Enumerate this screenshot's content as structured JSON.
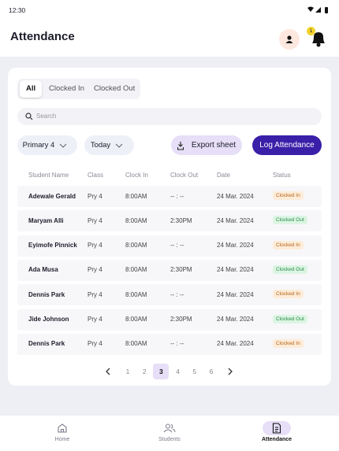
{
  "status_bar": {
    "time": "12:30"
  },
  "header": {
    "title": "Attendance",
    "notification_count": "1"
  },
  "tabs": [
    "All",
    "Clocked In",
    "Clocked Out"
  ],
  "search": {
    "placeholder": "Search"
  },
  "filters": {
    "class": "Primary 4",
    "date": "Today"
  },
  "actions": {
    "export": "Export sheet",
    "log": "Log Attendance"
  },
  "table": {
    "columns": [
      "Student Name",
      "Class",
      "Clock In",
      "Clock Out",
      "Date",
      "Status"
    ],
    "rows": [
      [
        "Adewale Gerald",
        "Pry 4",
        "8:00AM",
        "-- : --",
        "24 Mar. 2024",
        "Clocked In"
      ],
      [
        "Maryam Alli",
        "Pry 4",
        "8:00AM",
        "2:30PM",
        "24 Mar. 2024",
        "Clocked Out"
      ],
      [
        "Eyimofe Pinnick",
        "Pry 4",
        "8:00AM",
        "-- : --",
        "24 Mar. 2024",
        "Clocked In"
      ],
      [
        "Ada Musa",
        "Pry 4",
        "8:00AM",
        "2:30PM",
        "24 Mar. 2024",
        "Clocked Out"
      ],
      [
        "Dennis Park",
        "Pry 4",
        "8:00AM",
        "-- : --",
        "24 Mar. 2024",
        "Clocked In"
      ],
      [
        "Jide Johnson",
        "Pry 4",
        "8:00AM",
        "2:30PM",
        "24 Mar. 2024",
        "Clocked Out"
      ],
      [
        "Dennis Park",
        "Pry 4",
        "8:00AM",
        "-- : --",
        "24 Mar. 2024",
        "Clocked In"
      ]
    ]
  },
  "pagination": {
    "pages": [
      1,
      2,
      3,
      4,
      5,
      6
    ]
  },
  "nav": [
    "Home",
    "Students",
    "Attendance"
  ]
}
